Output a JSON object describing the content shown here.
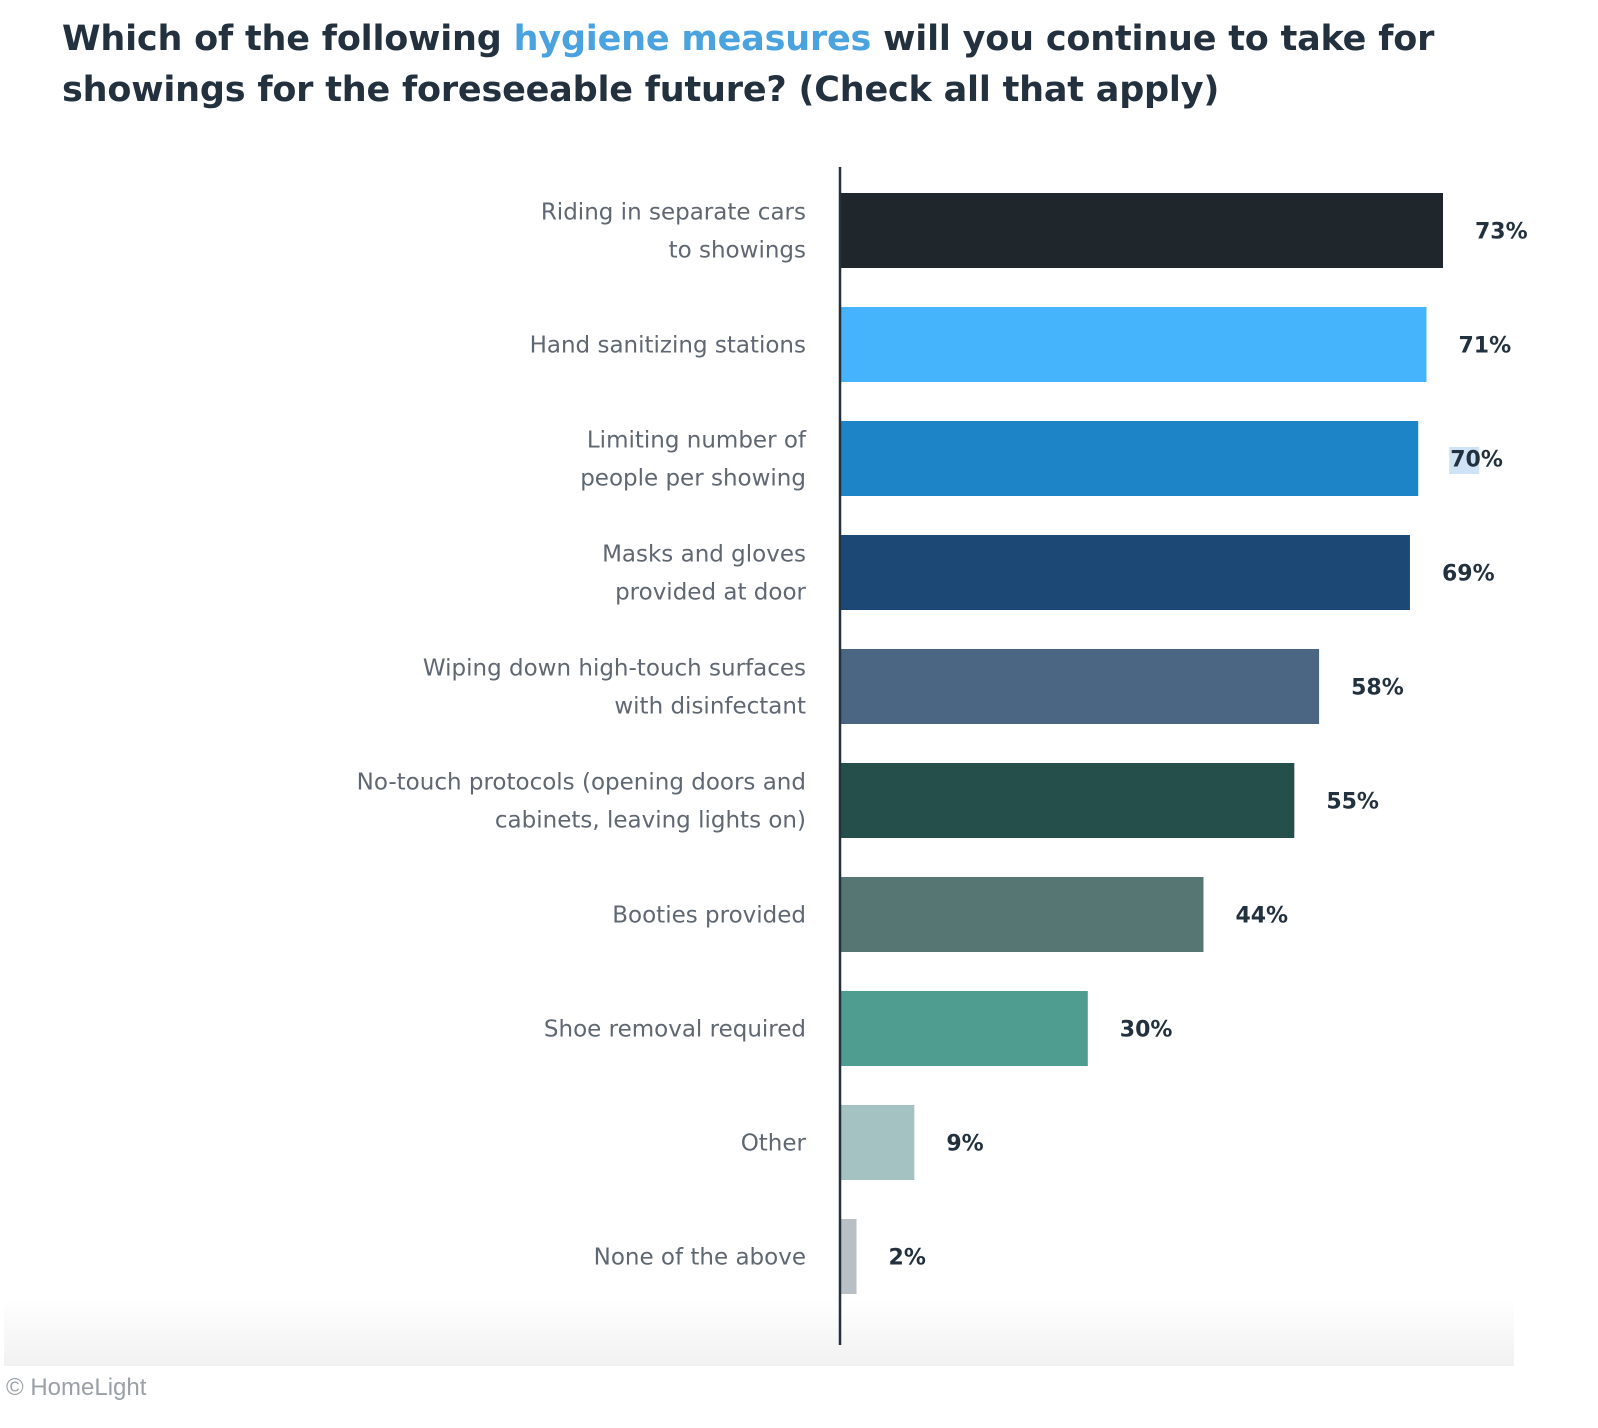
{
  "title": {
    "part1": "Which of the following ",
    "highlight": "hygiene measures",
    "part2": " will you continue to take for showings for the foreseeable future? (Check all that apply)"
  },
  "credit": "© HomeLight",
  "chart_data": {
    "type": "bar",
    "orientation": "horizontal",
    "title": "Which of the following hygiene measures will you continue to take for showings for the foreseeable future? (Check all that apply)",
    "categories": [
      [
        "Riding in separate cars",
        "to showings"
      ],
      [
        "Hand sanitizing stations"
      ],
      [
        "Limiting number of",
        "people per showing"
      ],
      [
        "Masks and gloves",
        "provided at door"
      ],
      [
        "Wiping down high-touch surfaces",
        "with disinfectant"
      ],
      [
        "No-touch protocols (opening doors and",
        "cabinets, leaving lights on)"
      ],
      [
        "Booties provided"
      ],
      [
        "Shoe removal required"
      ],
      [
        "Other"
      ],
      [
        "None of the above"
      ]
    ],
    "values": [
      73,
      71,
      70,
      69,
      58,
      55,
      44,
      30,
      9,
      2
    ],
    "value_labels": [
      "73%",
      "71%",
      "70%",
      "69%",
      "58%",
      "55%",
      "44%",
      "30%",
      "9%",
      "2%"
    ],
    "colors": [
      "#1f272d",
      "#45b4fc",
      "#1e84c8",
      "#1c4876",
      "#4a6683",
      "#244f4b",
      "#567674",
      "#4f9c91",
      "#a3c2c1",
      "#b8c0c5"
    ],
    "highlighted_label_index": 2,
    "xlim": [
      0,
      73
    ],
    "legend": "none",
    "grid": false
  }
}
